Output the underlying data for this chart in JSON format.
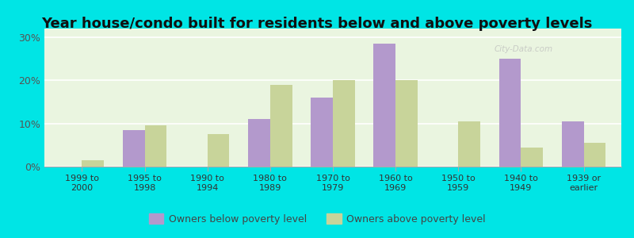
{
  "title": "Year house/condo built for residents below and above poverty levels",
  "categories": [
    "1999 to\n2000",
    "1995 to\n1998",
    "1990 to\n1994",
    "1980 to\n1989",
    "1970 to\n1979",
    "1960 to\n1969",
    "1950 to\n1959",
    "1940 to\n1949",
    "1939 or\nearlier"
  ],
  "below_poverty": [
    0.0,
    8.5,
    0.0,
    11.0,
    16.0,
    28.5,
    0.0,
    25.0,
    10.5
  ],
  "above_poverty": [
    1.5,
    9.5,
    7.5,
    19.0,
    20.0,
    20.0,
    10.5,
    4.5,
    5.5
  ],
  "below_color": "#b399cc",
  "above_color": "#c8d49a",
  "ylim": [
    0,
    32
  ],
  "yticks": [
    0,
    10,
    20,
    30
  ],
  "ytick_labels": [
    "0%",
    "10%",
    "20%",
    "30%"
  ],
  "outer_bg": "#00e5e5",
  "plot_bg": "#eaf5e0",
  "title_fontsize": 13,
  "bar_width": 0.35,
  "legend_below_label": "Owners below poverty level",
  "legend_above_label": "Owners above poverty level"
}
